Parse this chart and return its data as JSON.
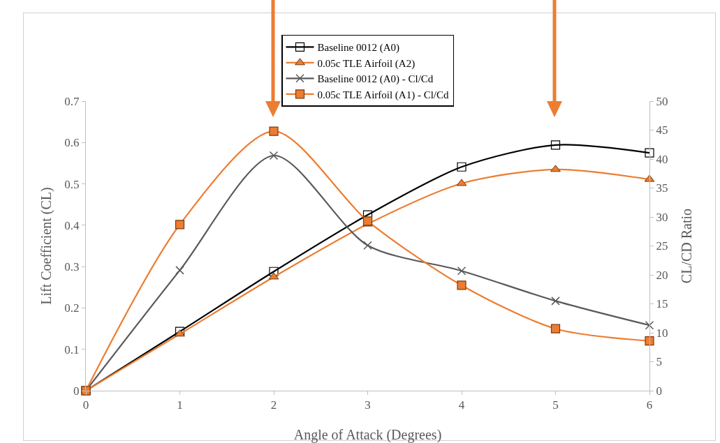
{
  "chart_data": {
    "type": "line",
    "xlabel": "Angle of Attack (Degrees)",
    "ylabel": "Lift Coefficient (CL)",
    "y2label": "CL/CD Ratio",
    "x": [
      0,
      1,
      2,
      3,
      4,
      5,
      6
    ],
    "series": [
      {
        "name": "Baseline 0012 (A0)",
        "color": "#000000",
        "marker": "square",
        "values": [
          0,
          0.143,
          0.288,
          0.425,
          0.541,
          0.594,
          0.575
        ]
      },
      {
        "name": "0.05c TLE Airfoil (A2)",
        "color": "#ed7d31",
        "marker": "triangle",
        "values": [
          0,
          0.137,
          0.275,
          0.403,
          0.501,
          0.535,
          0.511
        ]
      },
      {
        "name": "Baseline 0012 (A0) - Cl/Cd",
        "color": "#595959",
        "marker": "cross",
        "axis": "y2",
        "values": [
          0,
          20.8,
          40.6,
          25.1,
          20.7,
          15.5,
          11.3
        ]
      },
      {
        "name": "0.05c TLE Airfoil (A1) - Cl/Cd",
        "color": "#ed7d31",
        "marker": "square",
        "axis": "y2",
        "values": [
          0,
          28.7,
          44.8,
          29.3,
          18.2,
          10.7,
          8.6
        ]
      }
    ],
    "xlim": [
      0,
      6
    ],
    "xticks": [
      0,
      1,
      2,
      3,
      4,
      5,
      6
    ],
    "ylim": [
      0,
      0.7
    ],
    "yticks": [
      0,
      0.1,
      0.2,
      0.3,
      0.4,
      0.5,
      0.6,
      0.7
    ],
    "y2lim": [
      0,
      50
    ],
    "y2ticks": [
      0,
      5,
      10,
      15,
      20,
      25,
      30,
      35,
      40,
      45,
      50
    ],
    "legend": "top",
    "line_style": "solid"
  }
}
